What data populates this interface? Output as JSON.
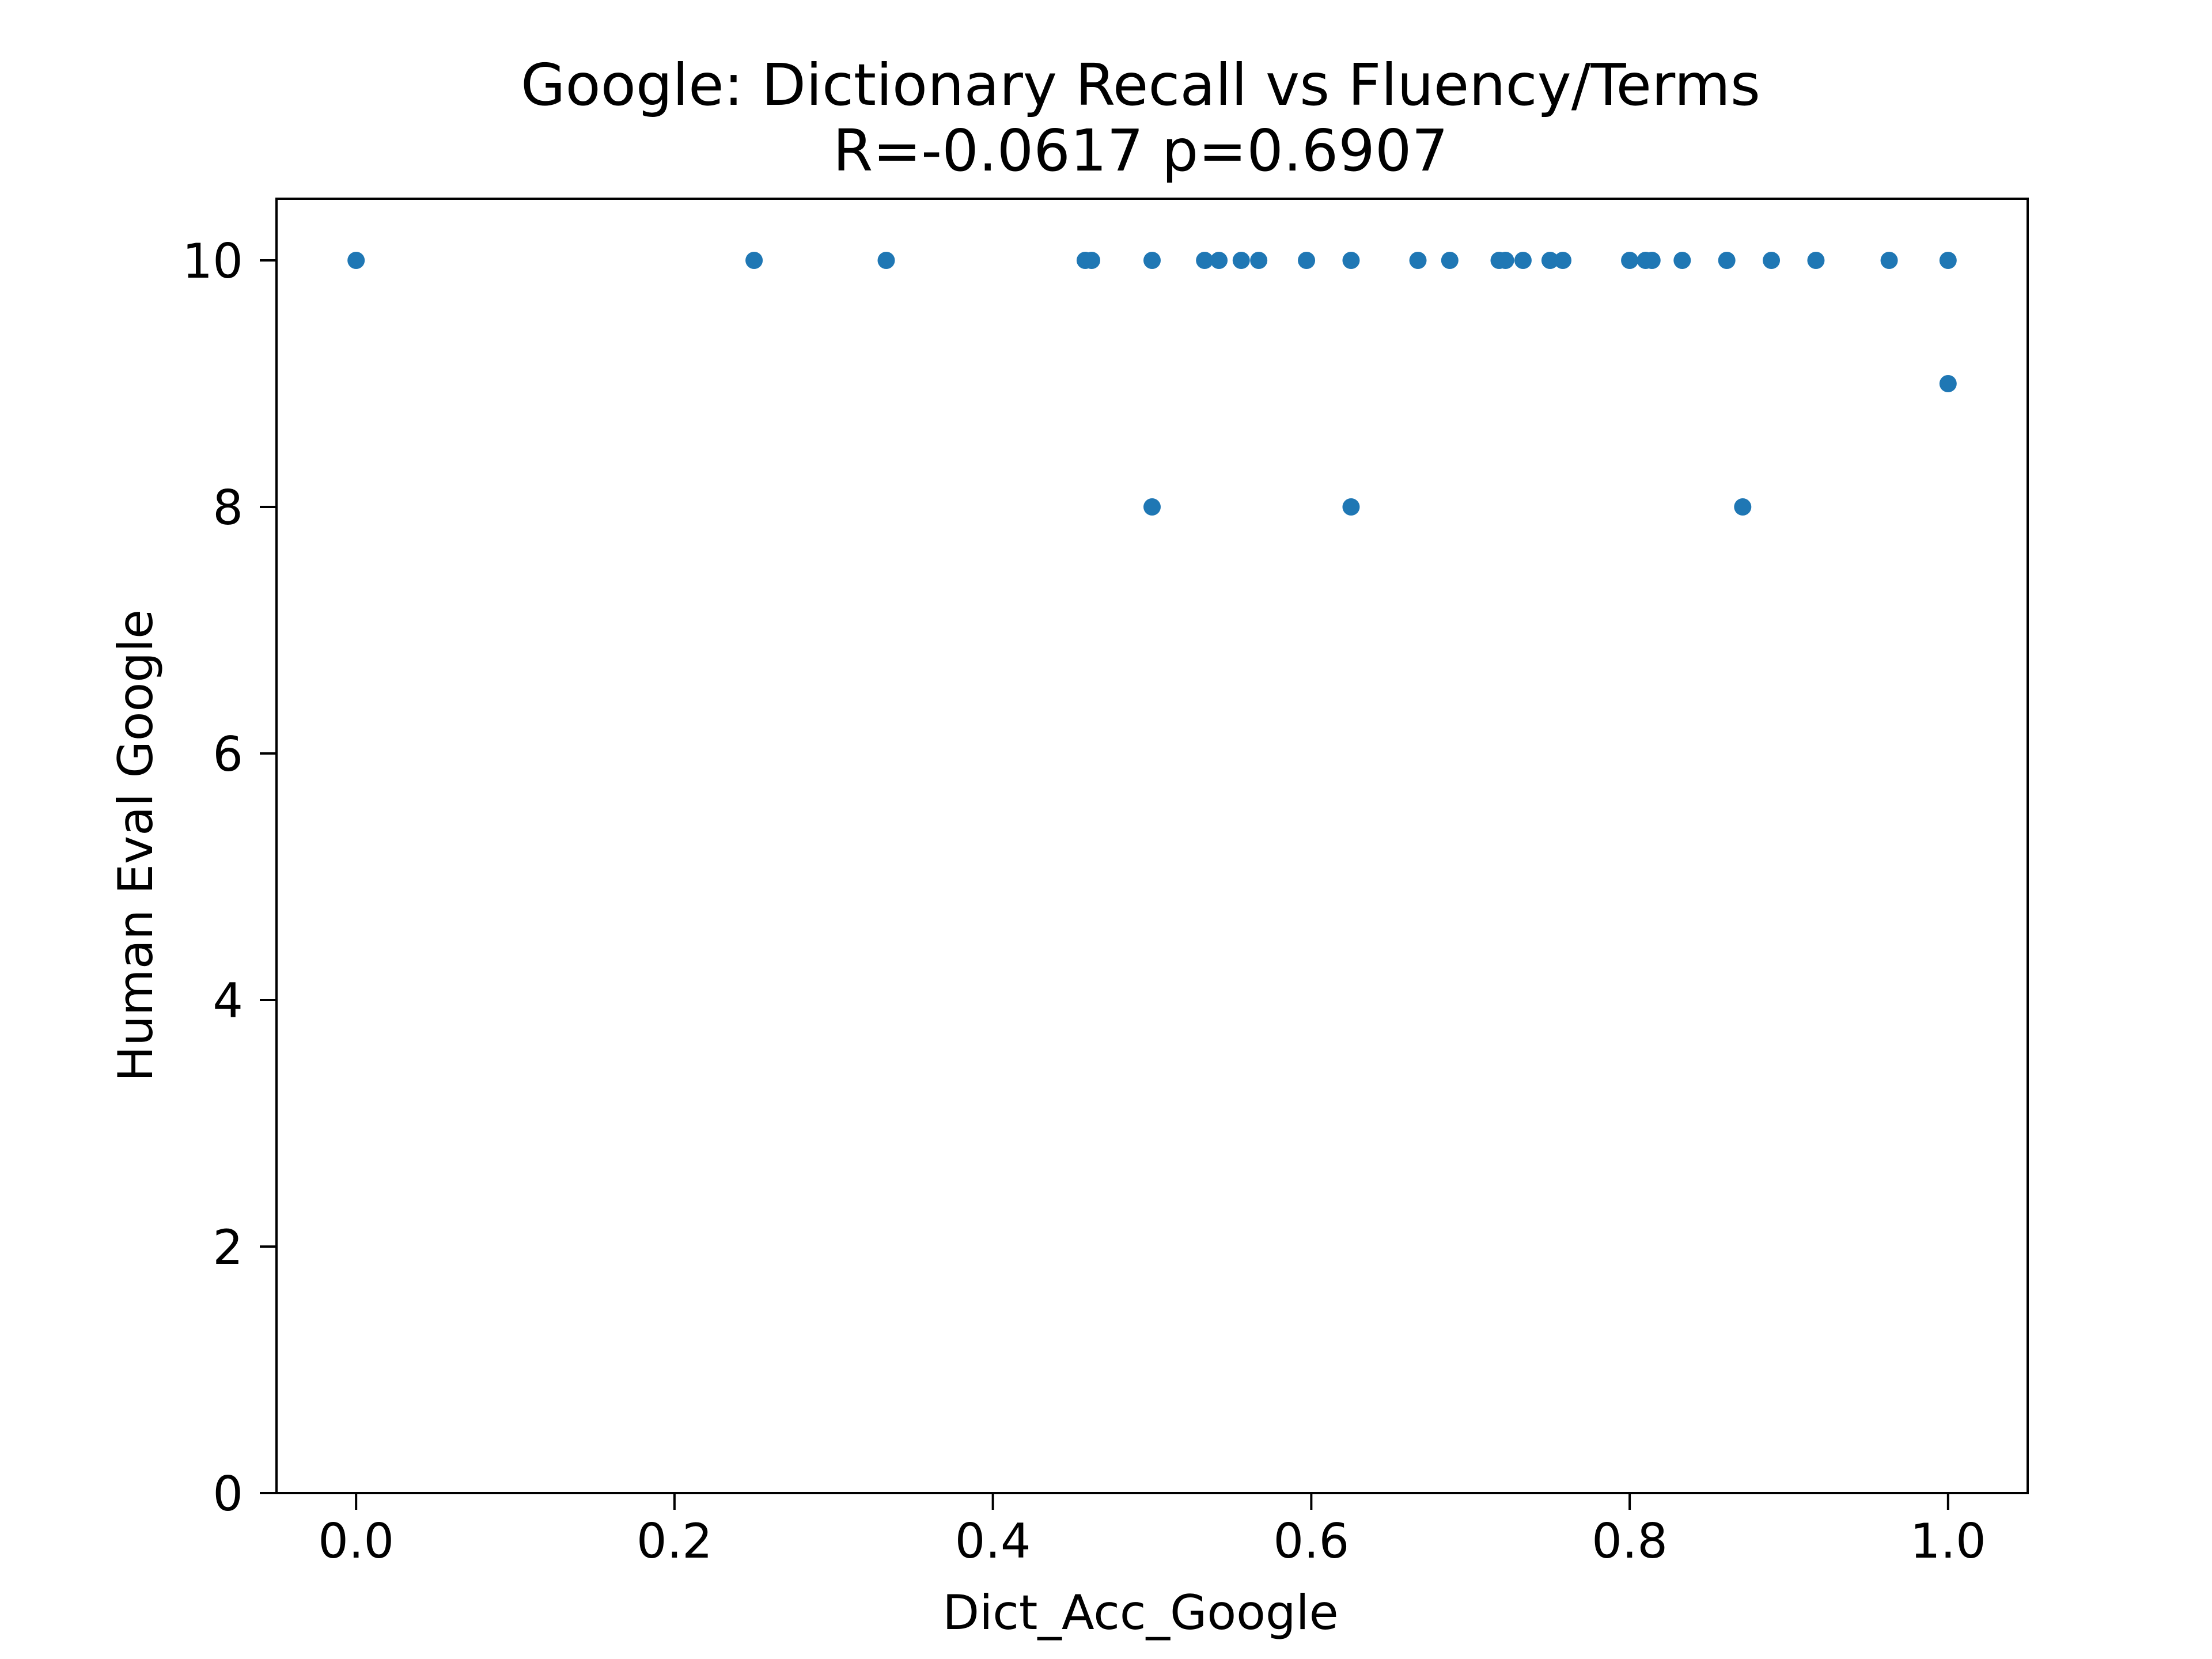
{
  "chart_data": {
    "type": "scatter",
    "title": "Google: Dictionary Recall vs Fluency/Terms",
    "subtitle": "R=-0.0617 p=0.6907",
    "xlabel": "Dict_Acc_Google",
    "ylabel": "Human Eval Google",
    "xlim": [
      -0.05,
      1.05
    ],
    "ylim": [
      0,
      10.5
    ],
    "x_ticks": [
      "0.0",
      "0.2",
      "0.4",
      "0.6",
      "0.8",
      "1.0"
    ],
    "x_tick_values": [
      0.0,
      0.2,
      0.4,
      0.6,
      0.8,
      1.0
    ],
    "y_ticks": [
      "0",
      "2",
      "4",
      "6",
      "8",
      "10"
    ],
    "y_tick_values": [
      0,
      2,
      4,
      6,
      8,
      10
    ],
    "grid": false,
    "marker_color": "#1f77b4",
    "points": [
      {
        "x": 0.0,
        "y": 10
      },
      {
        "x": 0.25,
        "y": 10
      },
      {
        "x": 0.333,
        "y": 10
      },
      {
        "x": 0.458,
        "y": 10
      },
      {
        "x": 0.462,
        "y": 10
      },
      {
        "x": 0.5,
        "y": 10
      },
      {
        "x": 0.5,
        "y": 8
      },
      {
        "x": 0.533,
        "y": 10
      },
      {
        "x": 0.542,
        "y": 10
      },
      {
        "x": 0.556,
        "y": 10
      },
      {
        "x": 0.567,
        "y": 10
      },
      {
        "x": 0.597,
        "y": 10
      },
      {
        "x": 0.625,
        "y": 10
      },
      {
        "x": 0.625,
        "y": 8
      },
      {
        "x": 0.667,
        "y": 10
      },
      {
        "x": 0.687,
        "y": 10
      },
      {
        "x": 0.718,
        "y": 10
      },
      {
        "x": 0.722,
        "y": 10
      },
      {
        "x": 0.733,
        "y": 10
      },
      {
        "x": 0.75,
        "y": 10
      },
      {
        "x": 0.758,
        "y": 10
      },
      {
        "x": 0.8,
        "y": 10
      },
      {
        "x": 0.81,
        "y": 10
      },
      {
        "x": 0.814,
        "y": 10
      },
      {
        "x": 0.833,
        "y": 10
      },
      {
        "x": 0.861,
        "y": 10
      },
      {
        "x": 0.871,
        "y": 8
      },
      {
        "x": 0.889,
        "y": 10
      },
      {
        "x": 0.917,
        "y": 10
      },
      {
        "x": 0.963,
        "y": 10
      },
      {
        "x": 1.0,
        "y": 10
      },
      {
        "x": 1.0,
        "y": 9
      }
    ]
  }
}
